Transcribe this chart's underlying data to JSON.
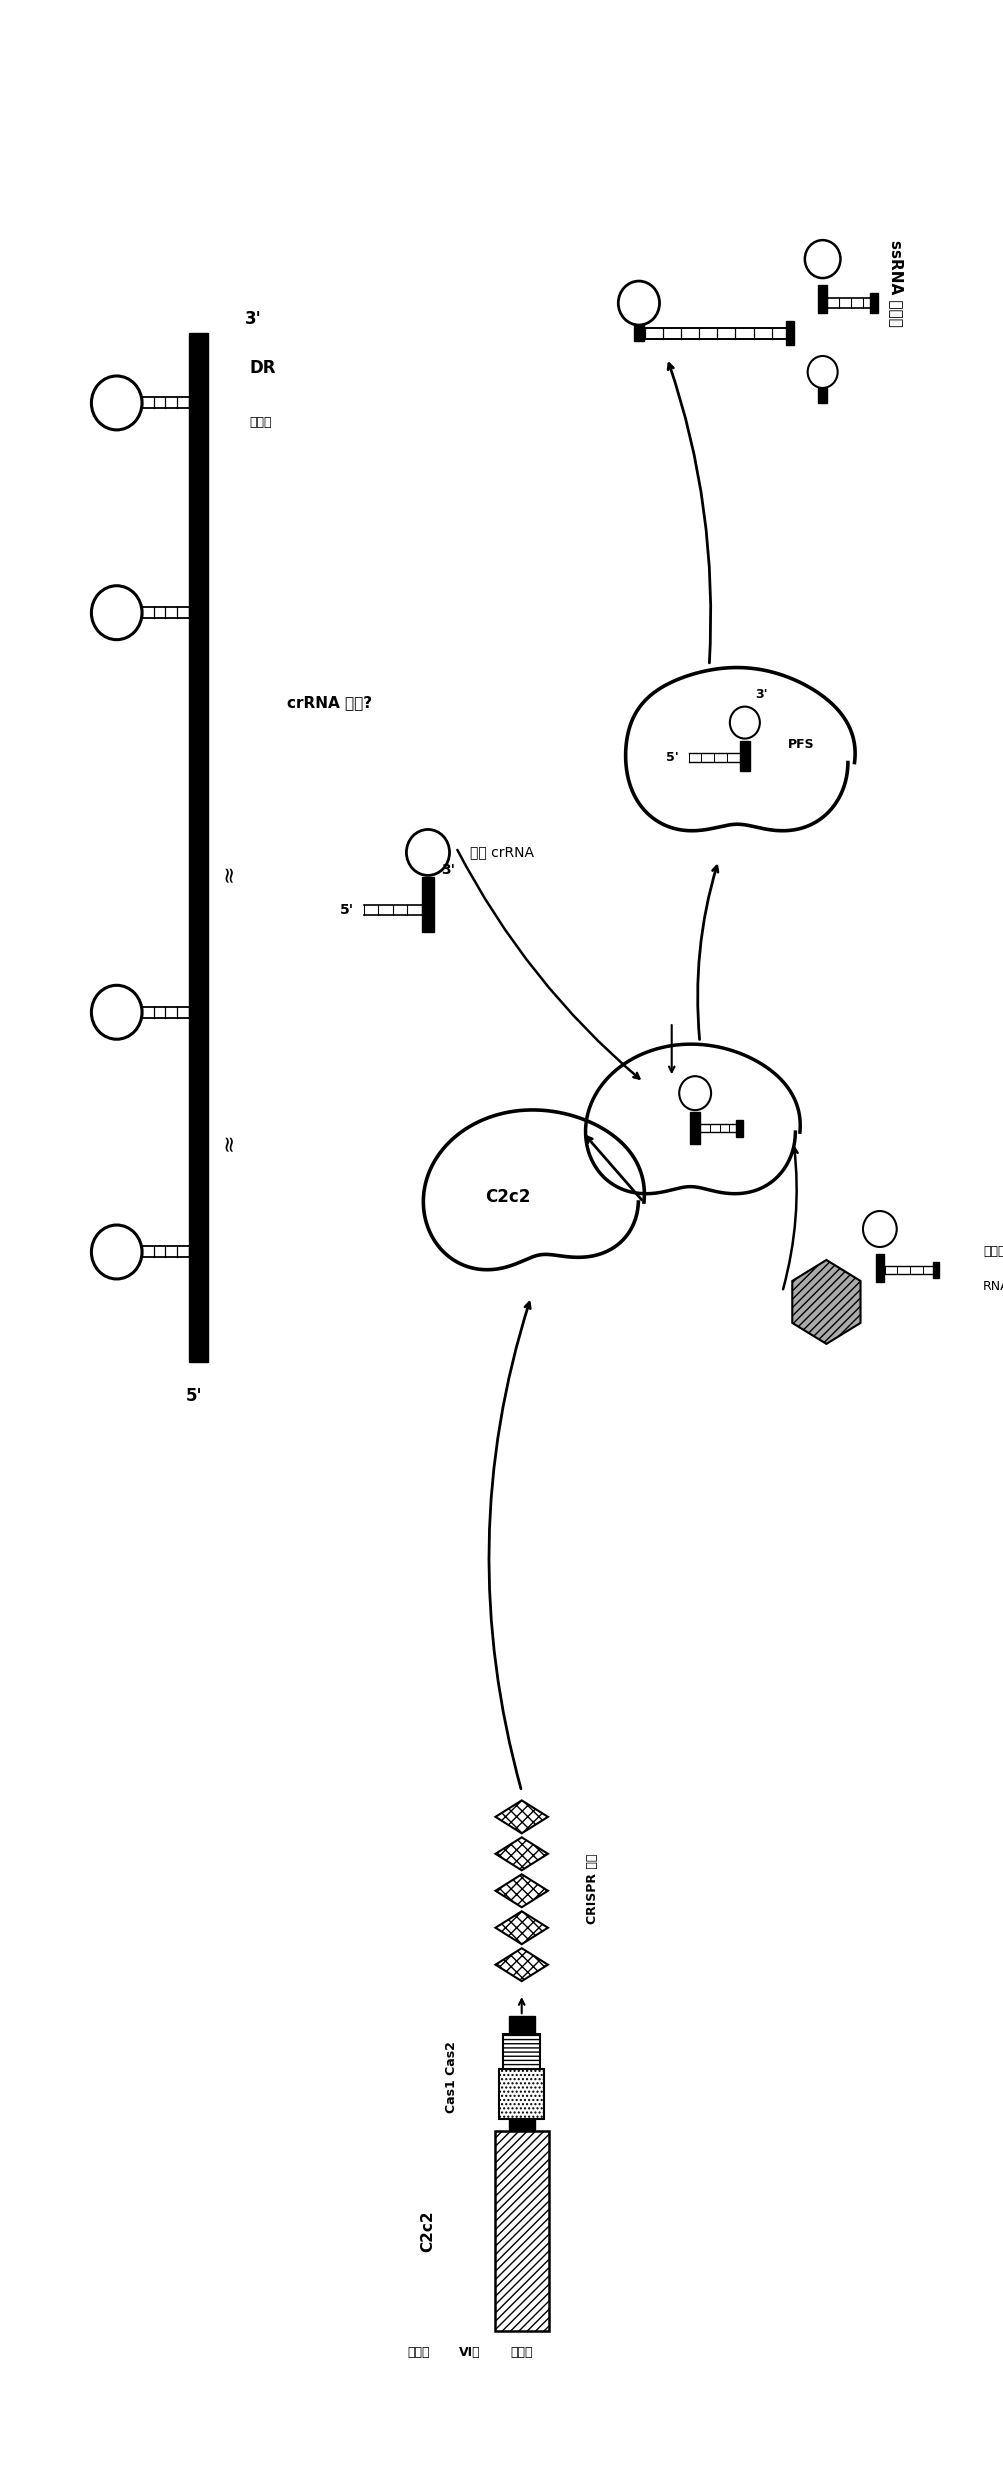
{
  "background": "#ffffff",
  "fig_w": 10.04,
  "fig_h": 24.82,
  "xlim": [
    0,
    10.04
  ],
  "ylim": [
    0,
    24.82
  ],
  "labels": {
    "gene_locus_line1": "普通型",
    "gene_locus_line2": "VI型",
    "gene_locus_line3": "基因座",
    "C2c2_gene": "C2c2",
    "Cas1Cas2": "Cas1 Cas2",
    "CRISPR_array": "CRISPR 序列",
    "crRNA_processing": "crRNA 加工?",
    "mature_crRNA": "成熟 crRNA",
    "DR": "DR",
    "spacer": "间隔区",
    "5p": "5'",
    "3p": "3'",
    "PFS": "PFS",
    "C2c2_protein": "C2c2",
    "ssRNA_cleavage": "ssRNA 的裂解",
    "phage_body": "噌菌体",
    "phage_RNA": "噌菌体 RNA"
  }
}
